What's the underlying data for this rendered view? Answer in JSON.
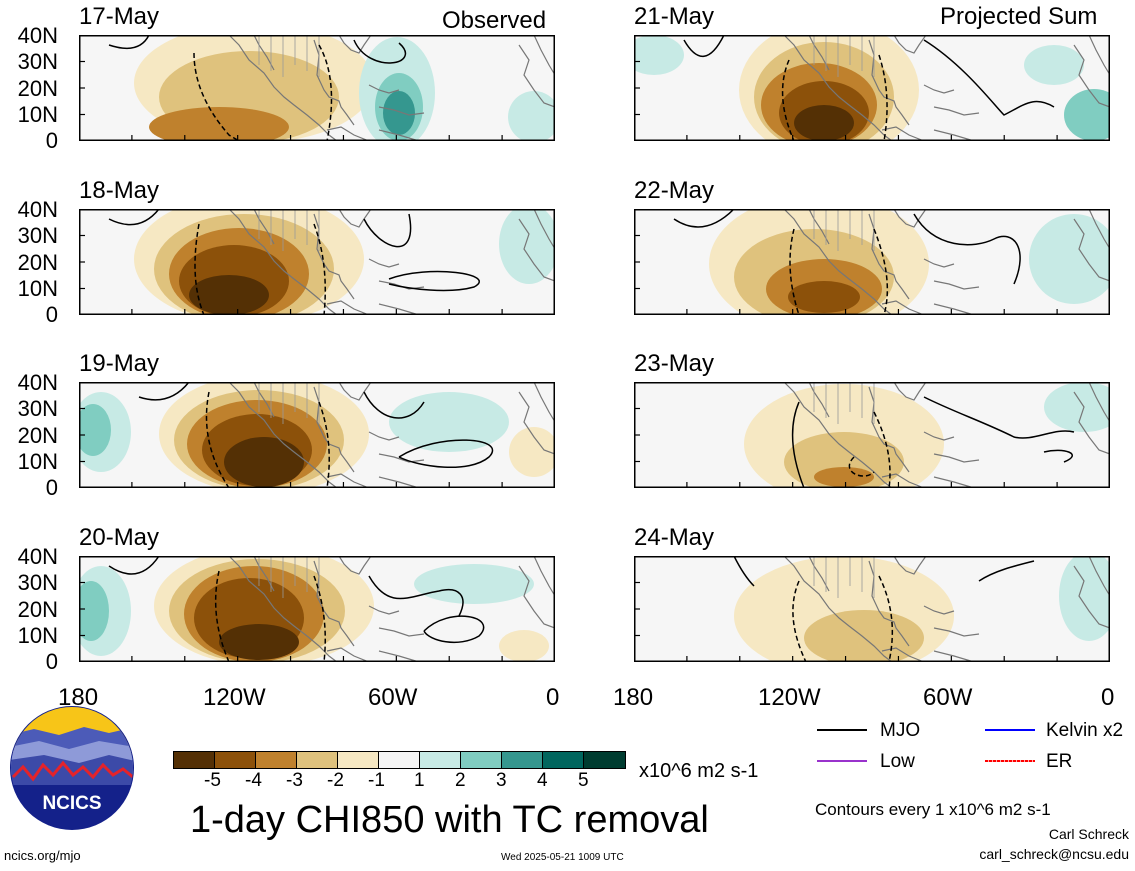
{
  "observed_label": "Observed",
  "projected_label": "Projected Sum",
  "left_dates": [
    "17-May",
    "18-May",
    "19-May",
    "20-May"
  ],
  "right_dates": [
    "21-May",
    "22-May",
    "23-May",
    "24-May"
  ],
  "lat_labels": [
    "40N",
    "30N",
    "20N",
    "10N",
    "0"
  ],
  "lon_labels": [
    "180",
    "120W",
    "60W",
    "0"
  ],
  "colorbar": {
    "tick_labels": [
      "-5",
      "-4",
      "-3",
      "-2",
      "-1",
      "1",
      "2",
      "3",
      "4",
      "5"
    ],
    "units": "x10^6 m2 s-1",
    "colors": [
      "#543005",
      "#8c510a",
      "#bf812d",
      "#dfc27d",
      "#f6e8c3",
      "#f5f5f5",
      "#c7eae5",
      "#80cdc1",
      "#35978f",
      "#01665e",
      "#003c30"
    ]
  },
  "title": "1-day CHI850 with TC removal",
  "legend": [
    {
      "label": "MJO",
      "color": "#000000"
    },
    {
      "label": "Kelvin x2",
      "color": "#0000ff"
    },
    {
      "label": "Low",
      "color": "#9932cc"
    },
    {
      "label": "ER",
      "color": "#ff0000"
    }
  ],
  "contour_note": "Contours every 1 x10^6 m2 s-1",
  "author": "Carl Schreck",
  "email": "carl_schreck@ncsu.edu",
  "url": "ncics.org/mjo",
  "timestamp": "Wed 2025-05-21 1009 UTC",
  "logo_text": "NCICS"
}
